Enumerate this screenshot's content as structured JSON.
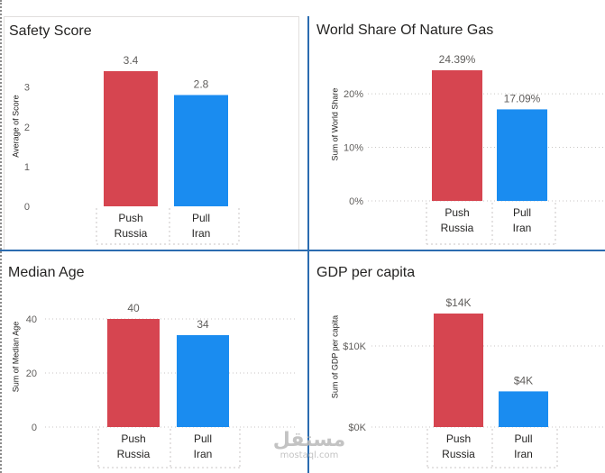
{
  "chart_data": [
    {
      "type": "bar",
      "title": "Safety Score",
      "ylabel": "Average of Score",
      "categories": [
        "Push Russia",
        "Pull Iran"
      ],
      "category_lines": [
        [
          "Push",
          "Russia"
        ],
        [
          "Pull",
          "Iran"
        ]
      ],
      "values": [
        3.4,
        2.8
      ],
      "value_labels": [
        "3.4",
        "2.8"
      ],
      "colors": [
        "#d64550",
        "#1a8cf0"
      ],
      "ylim": [
        0,
        3.4
      ],
      "yticks": [
        0,
        1,
        2,
        3
      ],
      "ytick_labels": [
        "0",
        "1",
        "2",
        "3"
      ],
      "grid": false
    },
    {
      "type": "bar",
      "title": "World Share Of Nature Gas",
      "ylabel": "Sum of World Share",
      "categories": [
        "Push Russia",
        "Pull Iran"
      ],
      "category_lines": [
        [
          "Push",
          "Russia"
        ],
        [
          "Pull",
          "Iran"
        ]
      ],
      "values": [
        24.39,
        17.09
      ],
      "value_labels": [
        "24.39%",
        "17.09%"
      ],
      "colors": [
        "#d64550",
        "#1a8cf0"
      ],
      "ylim": [
        0,
        24.39
      ],
      "yticks": [
        0,
        10,
        20
      ],
      "ytick_labels": [
        "0%",
        "10%",
        "20%"
      ],
      "grid": true
    },
    {
      "type": "bar",
      "title": "Median Age",
      "ylabel": "Sum of Median Age",
      "categories": [
        "Push Russia",
        "Pull Iran"
      ],
      "category_lines": [
        [
          "Push",
          "Russia"
        ],
        [
          "Pull",
          "Iran"
        ]
      ],
      "values": [
        40,
        34
      ],
      "value_labels": [
        "40",
        "34"
      ],
      "colors": [
        "#d64550",
        "#1a8cf0"
      ],
      "ylim": [
        0,
        40
      ],
      "yticks": [
        0,
        20,
        40
      ],
      "ytick_labels": [
        "0",
        "20",
        "40"
      ],
      "grid": true
    },
    {
      "type": "bar",
      "title": "GDP per capita",
      "ylabel": "Sum of GDP per capita",
      "categories": [
        "Push Russia",
        "Pull Iran"
      ],
      "category_lines": [
        [
          "Push",
          "Russia"
        ],
        [
          "Pull",
          "Iran"
        ]
      ],
      "values": [
        14000,
        4400
      ],
      "value_labels": [
        "$14K",
        "$4K"
      ],
      "colors": [
        "#d64550",
        "#1a8cf0"
      ],
      "ylim": [
        0,
        14000
      ],
      "yticks": [
        0,
        10000
      ],
      "ytick_labels": [
        "$0K",
        "$10K"
      ],
      "grid": true
    }
  ],
  "watermark": {
    "arabic": "مستقل",
    "latin": "mostaql.com"
  }
}
